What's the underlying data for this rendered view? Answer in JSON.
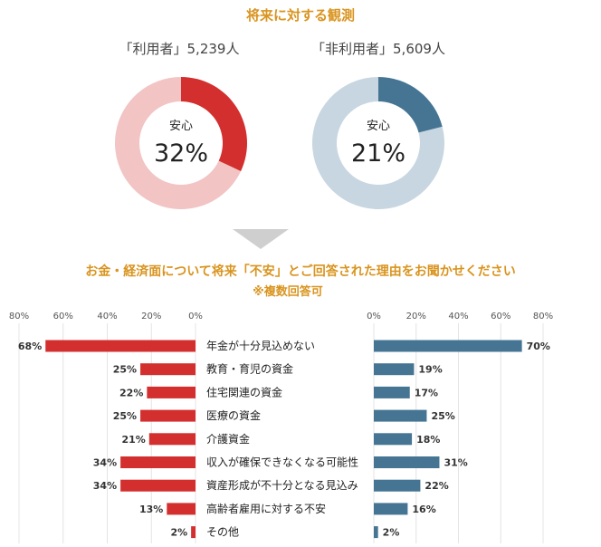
{
  "chart_data": [
    {
      "type": "pie",
      "title": "将来に対する観測",
      "label": "「利用者」5,239人",
      "center_label": "安心",
      "center_value": "32%",
      "values": [
        32,
        68
      ],
      "colors": [
        "#d32f2f",
        "#f2c4c4"
      ]
    },
    {
      "type": "pie",
      "label": "「非利用者」5,609人",
      "center_label": "安心",
      "center_value": "21%",
      "values": [
        21,
        79
      ],
      "colors": [
        "#457593",
        "#c7d6e0"
      ]
    },
    {
      "type": "bar",
      "orientation": "horizontal",
      "title": "お金・経済面について将来「不安」とご回答された理由をお聞かせください",
      "subtitle": "※複数回答可",
      "categories": [
        "年金が十分見込めない",
        "教育・育児の資金",
        "住宅関連の資金",
        "医療の資金",
        "介護資金",
        "収入が確保できなくなる可能性",
        "資産形成が不十分となる見込み",
        "高齢者雇用に対する不安",
        "その他"
      ],
      "series": [
        {
          "values": [
            68,
            25,
            22,
            25,
            21,
            34,
            34,
            13,
            2
          ],
          "labels": [
            "68%",
            "25%",
            "22%",
            "25%",
            "21%",
            "34%",
            "34%",
            "13%",
            "2%"
          ],
          "color": "#d32f2f",
          "direction": "left"
        },
        {
          "values": [
            70,
            19,
            17,
            25,
            18,
            31,
            22,
            16,
            2
          ],
          "labels": [
            "70%",
            "19%",
            "17%",
            "25%",
            "18%",
            "31%",
            "22%",
            "16%",
            "2%"
          ],
          "color": "#457593",
          "direction": "right"
        }
      ],
      "xlim": [
        0,
        80
      ],
      "ticks_left": [
        "80%",
        "60%",
        "40%",
        "20%",
        "0%"
      ],
      "ticks_right": [
        "0%",
        "20%",
        "40%",
        "60%",
        "80%"
      ],
      "grid": true
    }
  ],
  "arrow_color": "#cfcfcf",
  "accent_color": "#d9941f"
}
